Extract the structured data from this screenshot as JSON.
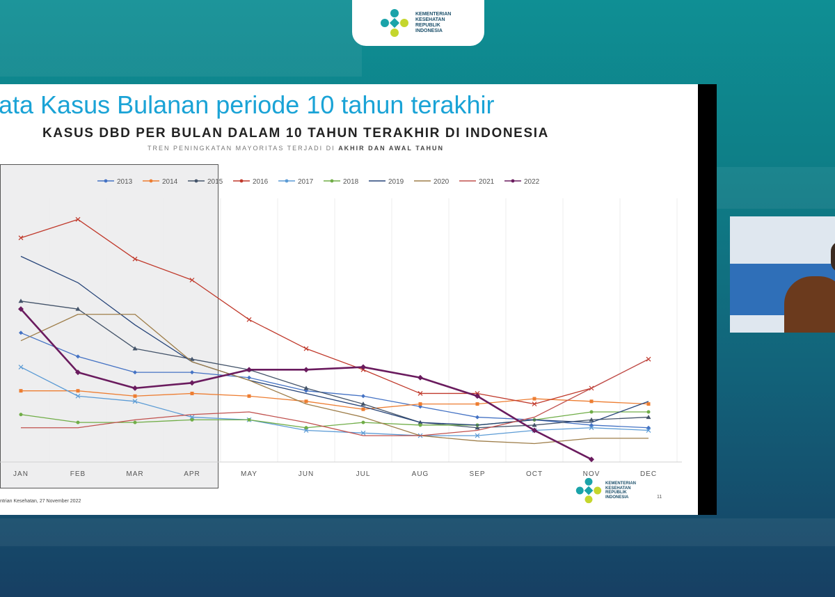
{
  "logo": {
    "text": "KEMENTERIAN\nKESEHATAN\nREPUBLIK\nINDONESIA",
    "icon": "kemenkes-logo"
  },
  "slide": {
    "title": "ata Kasus Bulanan periode 10 tahun terakhir",
    "footer_note": "ntrian Kesehatan, 27 November 2022",
    "page_number": "11",
    "footer_logo_text": "KEMENTERIAN\nKESEHATAN\nREPUBLIK\nINDONESIA"
  },
  "chart_data": {
    "type": "line",
    "title": "KASUS DBD PER BULAN DALAM 10 TAHUN TERAKHIR DI INDONESIA",
    "subtitle_prefix": "TREN PENINGKATAN MAYORITAS TERJADI DI",
    "subtitle_bold": "AKHIR DAN AWAL TAHUN",
    "categories": [
      "JAN",
      "FEB",
      "MAR",
      "APR",
      "MAY",
      "JUN",
      "JUL",
      "AUG",
      "SEP",
      "OCT",
      "NOV",
      "DEC"
    ],
    "ylim": [
      0,
      100
    ],
    "y_axis_labels_visible": false,
    "grid": "vertical",
    "legend_position": "top",
    "highlight_range": [
      "JAN",
      "APR"
    ],
    "series": [
      {
        "name": "2013",
        "color": "#4472c4",
        "marker": "diamond",
        "values": [
          49,
          40,
          34,
          34,
          32,
          27,
          25,
          21,
          17,
          16,
          14,
          13
        ]
      },
      {
        "name": "2014",
        "color": "#ed7d31",
        "marker": "square",
        "values": [
          27,
          27,
          25,
          26,
          25,
          23,
          20,
          22,
          22,
          24,
          23,
          22
        ]
      },
      {
        "name": "2015",
        "color": "#44546a",
        "marker": "triangle",
        "values": [
          61,
          58,
          43,
          39,
          35,
          28,
          22,
          15,
          13,
          14,
          16,
          17
        ]
      },
      {
        "name": "2016",
        "color": "#c0392b",
        "marker": "x",
        "values": [
          85,
          92,
          77,
          69,
          54,
          43,
          35,
          26,
          26,
          22,
          28,
          39
        ]
      },
      {
        "name": "2017",
        "color": "#5b9bd5",
        "marker": "x",
        "values": [
          36,
          25,
          23,
          17,
          16,
          12,
          11,
          10,
          10,
          12,
          13,
          12
        ]
      },
      {
        "name": "2018",
        "color": "#70ad47",
        "marker": "dot",
        "values": [
          18,
          15,
          15,
          16,
          16,
          13,
          15,
          14,
          14,
          16,
          19,
          19
        ]
      },
      {
        "name": "2019",
        "color": "#264478",
        "marker": "none",
        "values": [
          78,
          68,
          52,
          38,
          31,
          26,
          21,
          15,
          14,
          16,
          15,
          23
        ]
      },
      {
        "name": "2020",
        "color": "#9e7e4a",
        "marker": "none",
        "values": [
          46,
          56,
          56,
          38,
          31,
          22,
          17,
          10,
          8,
          7,
          9,
          9
        ]
      },
      {
        "name": "2021",
        "color": "#c0504d",
        "marker": "none",
        "values": [
          13,
          13,
          16,
          18,
          19,
          15,
          10,
          10,
          12,
          17,
          28,
          39
        ]
      },
      {
        "name": "2022",
        "color": "#6a1b5e",
        "marker": "diamond",
        "values": [
          58,
          34,
          28,
          30,
          35,
          35,
          36,
          32,
          25,
          12,
          1,
          null
        ]
      }
    ]
  },
  "webcam": {
    "label": ""
  }
}
